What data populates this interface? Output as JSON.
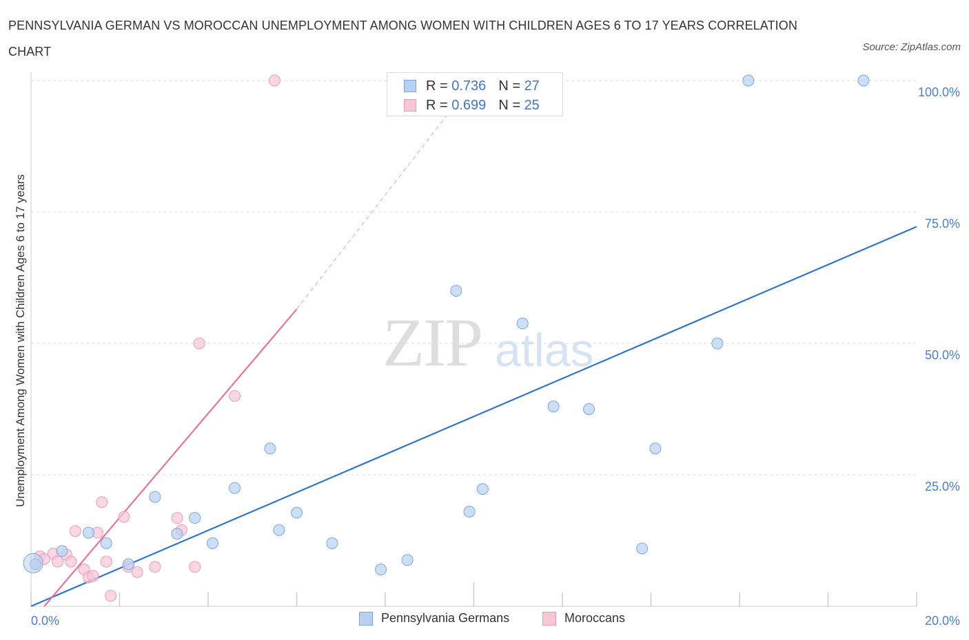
{
  "title": "PENNSYLVANIA GERMAN VS MOROCCAN UNEMPLOYMENT AMONG WOMEN WITH CHILDREN AGES 6 TO 17 YEARS CORRELATION CHART",
  "source": "Source: ZipAtlas.com",
  "watermark": {
    "zip": "ZIP",
    "atlas": "atlas"
  },
  "colors": {
    "blue_fill": "#b8d1f3",
    "blue_stroke": "#7aa6e0",
    "blue_line": "#2f74d0",
    "pink_fill": "#f8c6d6",
    "pink_stroke": "#ee9ab5",
    "pink_line": "#e8729a",
    "tick_text": "#4a7fd0",
    "grid": "#dddddd"
  },
  "legend": {
    "rows": [
      {
        "r_label": "R =",
        "r_value": "0.736",
        "n_label": "N =",
        "n_value": "27"
      },
      {
        "r_label": "R =",
        "r_value": "0.699",
        "n_label": "N =",
        "n_value": "25"
      }
    ]
  },
  "bottom_legend": [
    "Pennsylvania Germans",
    "Moroccans"
  ],
  "chart_data": {
    "type": "scatter",
    "title": "PENNSYLVANIA GERMAN VS MOROCCAN UNEMPLOYMENT AMONG WOMEN WITH CHILDREN AGES 6 TO 17 YEARS CORRELATION CHART",
    "xlabel": "",
    "ylabel": "Unemployment Among Women with Children Ages 6 to 17 years",
    "xlim": [
      0,
      20
    ],
    "ylim": [
      0,
      100
    ],
    "x_tick_labels": [
      "0.0%",
      "20.0%"
    ],
    "y_tick_labels": [
      "100.0%",
      "75.0%",
      "50.0%",
      "25.0%"
    ],
    "y_tick_values": [
      100,
      75,
      50,
      25
    ],
    "grid": true,
    "series": [
      {
        "name": "Pennsylvania Germans",
        "r": 0.736,
        "n": 27,
        "points": [
          [
            0.1,
            8.0
          ],
          [
            0.7,
            10.5
          ],
          [
            1.3,
            14.0
          ],
          [
            1.7,
            12.0
          ],
          [
            2.2,
            8.0
          ],
          [
            2.8,
            20.8
          ],
          [
            3.3,
            13.8
          ],
          [
            3.7,
            16.8
          ],
          [
            4.1,
            12.0
          ],
          [
            4.6,
            22.5
          ],
          [
            5.4,
            30.0
          ],
          [
            5.6,
            14.5
          ],
          [
            6.0,
            17.8
          ],
          [
            6.8,
            12.0
          ],
          [
            7.9,
            7.0
          ],
          [
            8.5,
            8.8
          ],
          [
            9.6,
            60.0
          ],
          [
            9.9,
            18.0
          ],
          [
            10.2,
            22.3
          ],
          [
            11.1,
            53.8
          ],
          [
            11.8,
            38.0
          ],
          [
            12.6,
            37.5
          ],
          [
            13.8,
            11.0
          ],
          [
            14.1,
            30.0
          ],
          [
            15.5,
            50.0
          ],
          [
            16.2,
            100.0
          ],
          [
            18.8,
            100.0
          ]
        ],
        "trend": {
          "x0": 0.0,
          "y0": 0.0,
          "x1": 20.0,
          "y1": 72.2
        }
      },
      {
        "name": "Moroccans",
        "r": 0.699,
        "n": 25,
        "points": [
          [
            0.1,
            8.0
          ],
          [
            0.2,
            9.5
          ],
          [
            0.5,
            10.0
          ],
          [
            0.6,
            8.5
          ],
          [
            0.8,
            9.8
          ],
          [
            0.9,
            8.5
          ],
          [
            1.0,
            14.3
          ],
          [
            1.2,
            7.0
          ],
          [
            1.3,
            5.5
          ],
          [
            1.5,
            14.0
          ],
          [
            1.6,
            19.8
          ],
          [
            1.7,
            8.5
          ],
          [
            1.8,
            2.0
          ],
          [
            2.1,
            17.0
          ],
          [
            2.2,
            7.5
          ],
          [
            2.4,
            6.5
          ],
          [
            2.8,
            7.5
          ],
          [
            3.3,
            16.8
          ],
          [
            3.4,
            14.5
          ],
          [
            3.7,
            7.5
          ],
          [
            3.8,
            50.0
          ],
          [
            4.6,
            40.0
          ],
          [
            5.5,
            100.0
          ],
          [
            1.4,
            5.8
          ],
          [
            0.3,
            9.0
          ]
        ],
        "trend": {
          "x0": 0.3,
          "y0": 0.0,
          "x1": 6.0,
          "y1": 56.5
        },
        "trend_extension": {
          "x0": 6.0,
          "y0": 56.5,
          "x1": 10.0,
          "y1": 100.0
        }
      }
    ]
  }
}
